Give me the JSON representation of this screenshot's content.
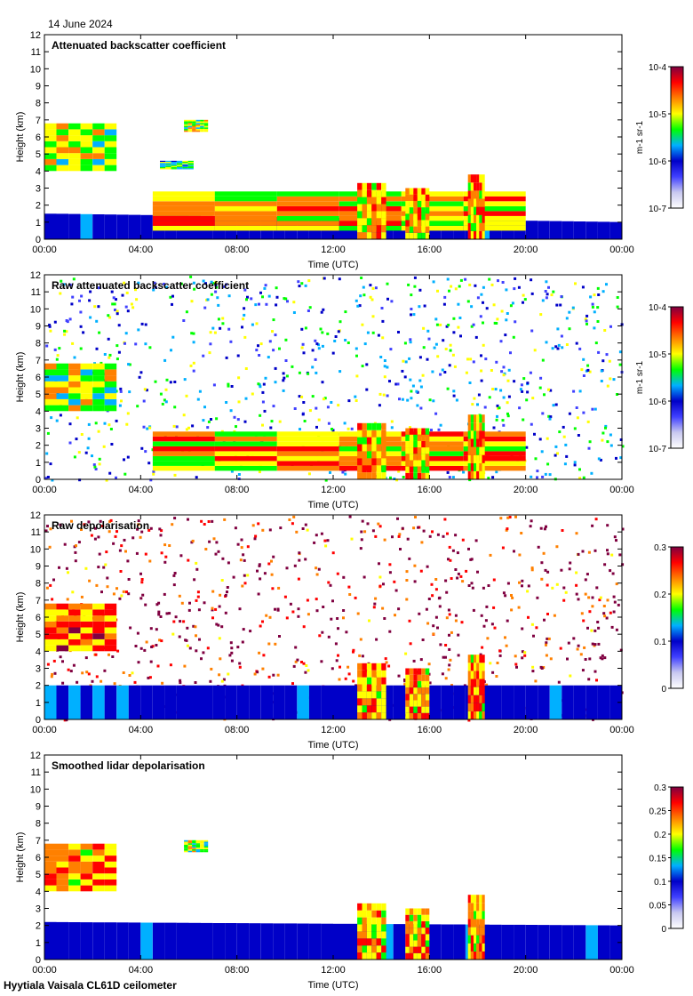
{
  "header": {
    "date": "14 June 2024"
  },
  "footer": {
    "site": "Hyytiala Vaisala CL61D ceilometer"
  },
  "colormap": [
    "#ffffff",
    "#c8c8f0",
    "#4040ff",
    "#0000c8",
    "#00b0ff",
    "#00ff00",
    "#ffff00",
    "#ff8000",
    "#ff0000",
    "#7f0040"
  ],
  "chart_data": [
    {
      "type": "heatmap",
      "title": "Attenuated backscatter coefficient",
      "xlabel": "Time (UTC)",
      "ylabel": "Height (km)",
      "xticks": [
        "00:00",
        "04:00",
        "08:00",
        "12:00",
        "16:00",
        "20:00",
        "00:00"
      ],
      "yticks": [
        "0",
        "1",
        "2",
        "3",
        "4",
        "5",
        "6",
        "7",
        "8",
        "9",
        "10",
        "11",
        "12"
      ],
      "xlim": [
        0,
        24
      ],
      "ylim": [
        0,
        12
      ],
      "colorbar": {
        "scale": "log",
        "ticks": [
          "10-7",
          "10-6",
          "10-5",
          "10-4"
        ],
        "unit_label": "m-1 sr-1"
      },
      "features": [
        {
          "kind": "boundary_layer",
          "x": [
            0,
            24
          ],
          "top_km": [
            1.5,
            1.0
          ],
          "level": 0.3
        },
        {
          "kind": "cloud",
          "x": [
            0,
            3
          ],
          "y": [
            4.0,
            6.8
          ],
          "level": 0.8
        },
        {
          "kind": "cloud",
          "x": [
            4.8,
            6.2
          ],
          "y": [
            4.1,
            4.6
          ],
          "level": 0.7
        },
        {
          "kind": "cloud",
          "x": [
            5.8,
            6.8
          ],
          "y": [
            6.3,
            7.0
          ],
          "level": 0.8
        },
        {
          "kind": "layer",
          "x": [
            4.5,
            20
          ],
          "y": [
            0.5,
            2.8
          ],
          "level": 0.9
        },
        {
          "kind": "precipitation",
          "x": [
            13.0,
            14.2
          ],
          "y": [
            0,
            3.3
          ],
          "level": 0.9
        },
        {
          "kind": "precipitation",
          "x": [
            15.0,
            16.0
          ],
          "y": [
            0,
            3.0
          ],
          "level": 0.9
        },
        {
          "kind": "precipitation",
          "x": [
            17.6,
            18.3
          ],
          "y": [
            0,
            3.8
          ],
          "level": 0.9
        }
      ]
    },
    {
      "type": "heatmap",
      "title": "Raw attenuated backscatter coefficient",
      "xlabel": "Time (UTC)",
      "ylabel": "Height (km)",
      "xticks": [
        "00:00",
        "04:00",
        "08:00",
        "12:00",
        "16:00",
        "20:00",
        "00:00"
      ],
      "yticks": [
        "0",
        "1",
        "2",
        "3",
        "4",
        "5",
        "6",
        "7",
        "8",
        "9",
        "10",
        "11",
        "12"
      ],
      "xlim": [
        0,
        24
      ],
      "ylim": [
        0,
        12
      ],
      "colorbar": {
        "scale": "log",
        "ticks": [
          "10-7",
          "10-6",
          "10-5",
          "10-4"
        ],
        "unit_label": "m-1 sr-1"
      },
      "features": [
        {
          "kind": "noise_field",
          "x": [
            0,
            24
          ],
          "y": [
            0,
            12
          ],
          "level": 0.45
        },
        {
          "kind": "cloud",
          "x": [
            0,
            3
          ],
          "y": [
            4.0,
            6.8
          ],
          "level": 0.8
        },
        {
          "kind": "layer",
          "x": [
            4.5,
            20
          ],
          "y": [
            0.5,
            2.8
          ],
          "level": 0.9
        },
        {
          "kind": "precipitation",
          "x": [
            13.0,
            14.2
          ],
          "y": [
            0,
            3.3
          ],
          "level": 0.9
        },
        {
          "kind": "precipitation",
          "x": [
            15.0,
            16.0
          ],
          "y": [
            0,
            3.0
          ],
          "level": 0.9
        },
        {
          "kind": "precipitation",
          "x": [
            17.6,
            18.3
          ],
          "y": [
            0,
            3.8
          ],
          "level": 0.9
        }
      ]
    },
    {
      "type": "heatmap",
      "title": "Raw depolarisation",
      "xlabel": "Time (UTC)",
      "ylabel": "Height (km)",
      "xticks": [
        "00:00",
        "04:00",
        "08:00",
        "12:00",
        "16:00",
        "20:00",
        "00:00"
      ],
      "yticks": [
        "0",
        "1",
        "2",
        "3",
        "4",
        "5",
        "6",
        "7",
        "8",
        "9",
        "10",
        "11",
        "12"
      ],
      "xlim": [
        0,
        24
      ],
      "ylim": [
        0,
        12
      ],
      "colorbar": {
        "scale": "linear",
        "ticks": [
          "0",
          "0.1",
          "0.2",
          "0.3"
        ],
        "unit_label": ""
      },
      "features": [
        {
          "kind": "noise_field",
          "x": [
            0,
            24
          ],
          "y": [
            0,
            12
          ],
          "level": 0.95
        },
        {
          "kind": "boundary_layer",
          "x": [
            0,
            24
          ],
          "top_km": [
            2.0,
            2.0
          ],
          "level": 0.3
        },
        {
          "kind": "cloud",
          "x": [
            0,
            3
          ],
          "y": [
            4.0,
            6.8
          ],
          "level": 0.95
        },
        {
          "kind": "precipitation",
          "x": [
            13.0,
            14.2
          ],
          "y": [
            0,
            3.3
          ],
          "level": 0.95
        },
        {
          "kind": "precipitation",
          "x": [
            15.0,
            16.0
          ],
          "y": [
            0,
            3.0
          ],
          "level": 0.95
        },
        {
          "kind": "precipitation",
          "x": [
            17.6,
            18.3
          ],
          "y": [
            0,
            3.8
          ],
          "level": 0.95
        }
      ]
    },
    {
      "type": "heatmap",
      "title": "Smoothed lidar depolarisation",
      "xlabel": "Time (UTC)",
      "ylabel": "Height (km)",
      "xticks": [
        "00:00",
        "04:00",
        "08:00",
        "12:00",
        "16:00",
        "20:00",
        "00:00"
      ],
      "yticks": [
        "0",
        "1",
        "2",
        "3",
        "4",
        "5",
        "6",
        "7",
        "8",
        "9",
        "10",
        "11",
        "12"
      ],
      "xlim": [
        0,
        24
      ],
      "ylim": [
        0,
        12
      ],
      "colorbar": {
        "scale": "linear",
        "ticks": [
          "0",
          "0.05",
          "0.1",
          "0.15",
          "0.2",
          "0.25",
          "0.3"
        ],
        "unit_label": ""
      },
      "features": [
        {
          "kind": "boundary_layer",
          "x": [
            0,
            24
          ],
          "top_km": [
            2.2,
            2.0
          ],
          "level": 0.3
        },
        {
          "kind": "cloud",
          "x": [
            0,
            3
          ],
          "y": [
            4.0,
            6.8
          ],
          "level": 0.95
        },
        {
          "kind": "cloud",
          "x": [
            5.8,
            6.8
          ],
          "y": [
            6.3,
            7.0
          ],
          "level": 0.8
        },
        {
          "kind": "precipitation",
          "x": [
            13.0,
            14.2
          ],
          "y": [
            0,
            3.3
          ],
          "level": 0.9
        },
        {
          "kind": "precipitation",
          "x": [
            15.0,
            16.0
          ],
          "y": [
            0,
            3.0
          ],
          "level": 0.9
        },
        {
          "kind": "precipitation",
          "x": [
            17.6,
            18.3
          ],
          "y": [
            0,
            3.8
          ],
          "level": 0.9
        }
      ]
    }
  ]
}
